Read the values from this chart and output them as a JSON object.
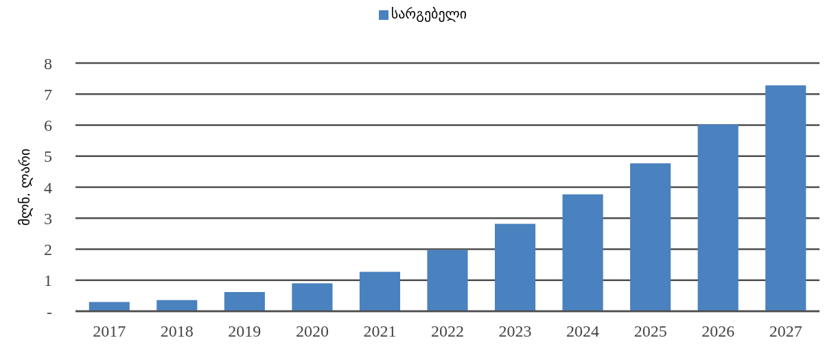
{
  "chart_data": {
    "type": "bar",
    "ylabel": "მლნ. ლარი",
    "categories": [
      "2017",
      "2018",
      "2019",
      "2020",
      "2021",
      "2022",
      "2023",
      "2024",
      "2025",
      "2026",
      "2027"
    ],
    "series": [
      {
        "name": "სარგებელი",
        "color": "#4a81bf",
        "values": [
          0.3,
          0.36,
          0.62,
          0.9,
          1.27,
          1.98,
          2.82,
          3.77,
          4.77,
          6.02,
          7.28
        ]
      }
    ],
    "ylim": [
      0,
      8
    ],
    "yticks": [
      {
        "value": 0,
        "label": "-"
      },
      1,
      2,
      3,
      4,
      5,
      6,
      7,
      8
    ],
    "grid": "y",
    "legend": "top"
  }
}
